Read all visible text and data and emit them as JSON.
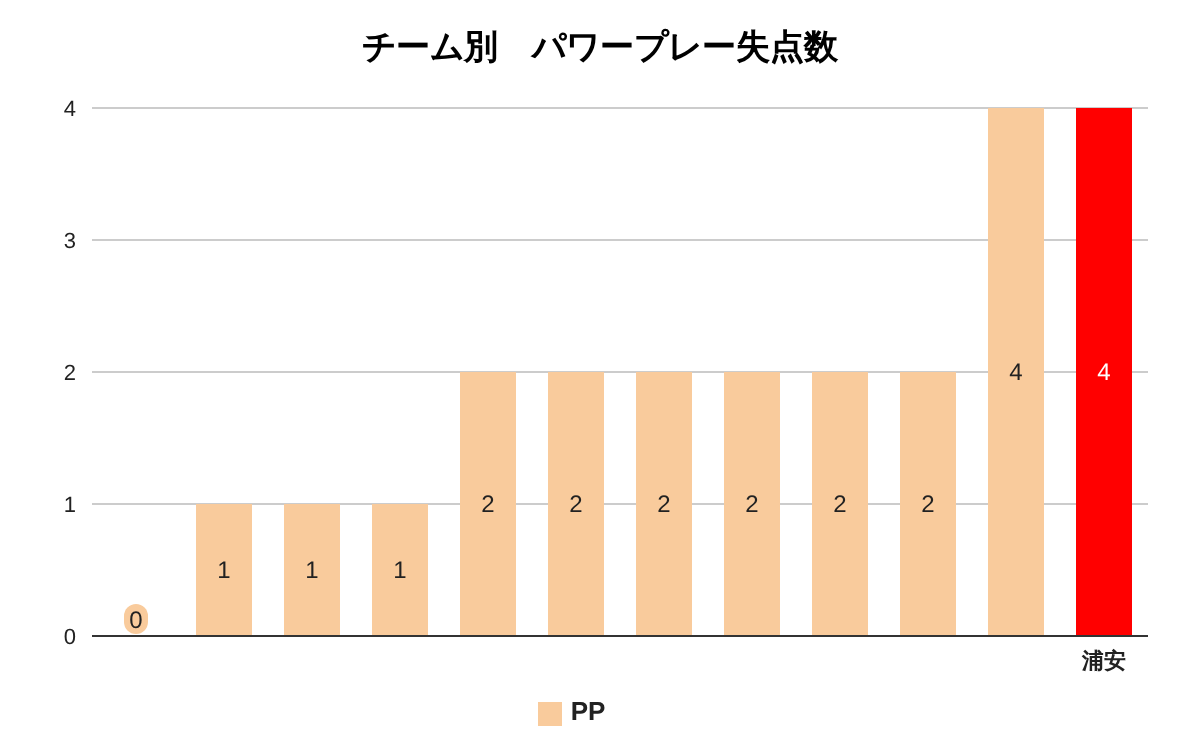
{
  "chart_data": {
    "type": "bar",
    "title": "チーム別　パワープレー失点数",
    "categories": [
      null,
      null,
      null,
      null,
      null,
      null,
      null,
      null,
      null,
      null,
      null,
      "浦安"
    ],
    "series": [
      {
        "name": "PP",
        "color": "#f9cb9c",
        "colors": [
          "#f9cb9c",
          "#f9cb9c",
          "#f9cb9c",
          "#f9cb9c",
          "#f9cb9c",
          "#f9cb9c",
          "#f9cb9c",
          "#f9cb9c",
          "#f9cb9c",
          "#f9cb9c",
          "#f9cb9c",
          "#ff0000"
        ],
        "values": [
          0,
          1,
          1,
          1,
          2,
          2,
          2,
          2,
          2,
          2,
          4,
          4
        ]
      }
    ],
    "ylim": [
      0,
      4
    ],
    "yticks": [
      0,
      1,
      2,
      3,
      4
    ],
    "grid": "y",
    "legend": "bottom",
    "data_labels": true
  }
}
